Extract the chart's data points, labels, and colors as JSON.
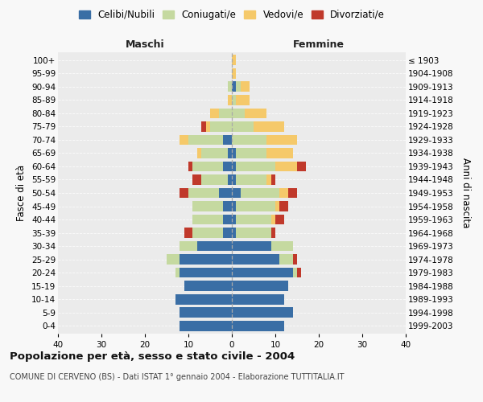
{
  "age_groups": [
    "0-4",
    "5-9",
    "10-14",
    "15-19",
    "20-24",
    "25-29",
    "30-34",
    "35-39",
    "40-44",
    "45-49",
    "50-54",
    "55-59",
    "60-64",
    "65-69",
    "70-74",
    "75-79",
    "80-84",
    "85-89",
    "90-94",
    "95-99",
    "100+"
  ],
  "birth_years": [
    "1999-2003",
    "1994-1998",
    "1989-1993",
    "1984-1988",
    "1979-1983",
    "1974-1978",
    "1969-1973",
    "1964-1968",
    "1959-1963",
    "1954-1958",
    "1949-1953",
    "1944-1948",
    "1939-1943",
    "1934-1938",
    "1929-1933",
    "1924-1928",
    "1919-1923",
    "1914-1918",
    "1909-1913",
    "1904-1908",
    "≤ 1903"
  ],
  "colors": {
    "celibi": "#3a6ea5",
    "coniugati": "#c5d9a0",
    "vedovi": "#f5c96a",
    "divorziati": "#c0392b"
  },
  "males": {
    "celibi": [
      12,
      12,
      13,
      11,
      12,
      12,
      8,
      2,
      2,
      2,
      3,
      1,
      2,
      1,
      2,
      0,
      0,
      0,
      0,
      0,
      0
    ],
    "coniugati": [
      0,
      0,
      0,
      0,
      1,
      3,
      4,
      7,
      7,
      7,
      7,
      6,
      7,
      6,
      8,
      5,
      3,
      0,
      1,
      0,
      0
    ],
    "vedovi": [
      0,
      0,
      0,
      0,
      0,
      0,
      0,
      0,
      0,
      0,
      0,
      0,
      0,
      1,
      2,
      1,
      2,
      1,
      0,
      0,
      0
    ],
    "divorziati": [
      0,
      0,
      0,
      0,
      0,
      0,
      0,
      2,
      0,
      0,
      2,
      2,
      1,
      0,
      0,
      1,
      0,
      0,
      0,
      0,
      0
    ]
  },
  "females": {
    "celibi": [
      12,
      14,
      12,
      13,
      14,
      11,
      9,
      1,
      1,
      1,
      2,
      1,
      1,
      1,
      0,
      0,
      0,
      0,
      1,
      0,
      0
    ],
    "coniugati": [
      0,
      0,
      0,
      0,
      1,
      3,
      5,
      8,
      8,
      9,
      9,
      7,
      9,
      7,
      8,
      5,
      3,
      1,
      1,
      0,
      0
    ],
    "vedovi": [
      0,
      0,
      0,
      0,
      0,
      0,
      0,
      0,
      1,
      1,
      2,
      1,
      5,
      6,
      7,
      7,
      5,
      3,
      2,
      1,
      1
    ],
    "divorziati": [
      0,
      0,
      0,
      0,
      1,
      1,
      0,
      1,
      2,
      2,
      2,
      1,
      2,
      0,
      0,
      0,
      0,
      0,
      0,
      0,
      0
    ]
  },
  "xlim": [
    -40,
    40
  ],
  "xticks": [
    -40,
    -30,
    -20,
    -10,
    0,
    10,
    20,
    30,
    40
  ],
  "xticklabels": [
    "40",
    "30",
    "20",
    "10",
    "0",
    "10",
    "20",
    "30",
    "40"
  ],
  "title": "Popolazione per età, sesso e stato civile - 2004",
  "subtitle": "COMUNE DI CERVENO (BS) - Dati ISTAT 1° gennaio 2004 - Elaborazione TUTTITALIA.IT",
  "ylabel_left": "Fasce di età",
  "ylabel_right": "Anni di nascita",
  "label_maschi": "Maschi",
  "label_femmine": "Femmine",
  "legend_labels": [
    "Celibi/Nubili",
    "Coniugati/e",
    "Vedovi/e",
    "Divorziati/e"
  ],
  "bg_color": "#f8f8f8",
  "plot_bg": "#ebebeb"
}
